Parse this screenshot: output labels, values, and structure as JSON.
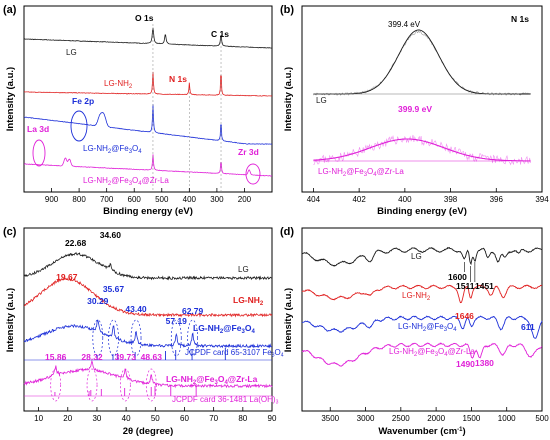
{
  "colors": {
    "LG": "#1a1a1a",
    "LG-NH2": "#e02020",
    "LG-NH2@Fe3O4": "#1c2fd8",
    "LG-NH2@Fe3O4@Zr-La": "#e020d8"
  },
  "chart_data": [
    {
      "panel": "(a)",
      "type": "line",
      "xlabel": "Binding energy (eV)",
      "ylabel": "Intensity (a.u.)",
      "xlim": [
        1000,
        100
      ],
      "xticks": [
        900,
        800,
        700,
        600,
        500,
        400,
        300,
        200
      ],
      "series": [
        {
          "name": "LG",
          "peaks_eV": [
            532,
            487,
            285
          ]
        },
        {
          "name": "LG-NH2",
          "peaks_eV": [
            532,
            400,
            285
          ]
        },
        {
          "name": "LG-NH2@Fe3O4",
          "peaks_eV": [
            711,
            532,
            285
          ]
        },
        {
          "name": "LG-NH2@Fe3O4@Zr-La",
          "peaks_eV": [
            850,
            835,
            532,
            285,
            183
          ]
        }
      ],
      "labels": {
        "LG": "LG",
        "LG-NH2": "LG-NH2",
        "LG-NH2@Fe3O4": "LG-NH2@Fe3O4",
        "LG-NH2@Fe3O4@Zr-La": "LG-NH2@Fe3O4@Zr-La"
      },
      "annotations": {
        "o1s": "O 1s",
        "c1s": "C 1s",
        "n1s": "N 1s",
        "fe2p": "Fe 2p",
        "la3d": "La 3d",
        "zr3d": "Zr 3d"
      }
    },
    {
      "panel": "(b)",
      "type": "line",
      "title": "N 1s",
      "xlabel": "Binding energy (eV)",
      "ylabel": "Intensity (a.u.)",
      "xlim": [
        404.5,
        394
      ],
      "xticks": [
        404,
        402,
        400,
        398,
        396,
        394
      ],
      "series": [
        {
          "name": "LG",
          "peak_eV": 399.4,
          "peak_label": "399.4 eV"
        },
        {
          "name": "LG-NH2@Fe3O4@Zr-La",
          "peak_eV": 399.9,
          "peak_label": "399.9 eV"
        }
      ],
      "labels": {
        "LG": "LG",
        "LG-NH2@Fe3O4@Zr-La": "LG-NH2@Fe3O4@Zr-La"
      }
    },
    {
      "panel": "(c)",
      "type": "line",
      "xlabel": "2θ (degree)",
      "ylabel": "Intensity (a.u.)",
      "xlim": [
        5,
        90
      ],
      "xticks": [
        10,
        20,
        30,
        40,
        50,
        60,
        70,
        80,
        90
      ],
      "series": [
        {
          "name": "LG",
          "peaks_deg": [
            22.68,
            34.6
          ]
        },
        {
          "name": "LG-NH2",
          "peaks_deg": [
            19.67
          ]
        },
        {
          "name": "LG-NH2@Fe3O4",
          "peaks_deg": [
            30.29,
            35.67,
            43.4,
            57.19,
            62.79
          ]
        },
        {
          "name": "LG-NH2@Fe3O4@Zr-La",
          "peaks_deg": [
            15.86,
            28.32,
            39.73,
            48.63
          ]
        }
      ],
      "peak_labels": {
        "LG": [
          "22.68",
          "34.60"
        ],
        "LG-NH2": [
          "19.67"
        ],
        "LG-NH2@Fe3O4": [
          "30.29",
          "35.67",
          "43.40",
          "57.19",
          "62.79"
        ],
        "LG-NH2@Fe3O4@Zr-La": [
          "15.86",
          "28.32",
          "39.73",
          "48.63"
        ]
      },
      "labels": {
        "LG": "LG",
        "LG-NH2": "LG-NH2",
        "LG-NH2@Fe3O4": "LG-NH2@Fe3O4",
        "LG-NH2@Fe3O4@Zr-La": "LG-NH2@Fe3O4@Zr-La"
      },
      "reference_cards": [
        {
          "label": "JCPDF card 65-3107 Fe3O4",
          "positions_deg": [
            18.3,
            30.1,
            35.5,
            37.1,
            43.1,
            53.5,
            57.0,
            62.6,
            74.0
          ]
        },
        {
          "label": "JCPDF card 36-1481 La(OH)3",
          "positions_deg": [
            15.6,
            27.3,
            27.9,
            31.5,
            39.5,
            48.6,
            49.9,
            55.3,
            64.0
          ]
        }
      ]
    },
    {
      "panel": "(d)",
      "type": "line",
      "xlabel": "Wavenumber (cm-1)",
      "ylabel": "Intensity (a.u.)",
      "xlim": [
        3900,
        500
      ],
      "xticks": [
        3500,
        3000,
        2500,
        2000,
        1500,
        1000,
        500
      ],
      "series": [
        {
          "name": "LG",
          "bands_cm": [
            1600,
            1511,
            1451
          ]
        },
        {
          "name": "LG-NH2",
          "bands_cm": [
            1646
          ]
        },
        {
          "name": "LG-NH2@Fe3O4",
          "bands_cm": [
            611
          ]
        },
        {
          "name": "LG-NH2@Fe3O4@Zr-La",
          "bands_cm": [
            1490,
            1380
          ]
        }
      ],
      "band_labels": {
        "b1600": "1600",
        "b1511": "1511",
        "b1451": "1451",
        "b1646": "1646",
        "b611": "611",
        "b1490": "1490",
        "b1380": "1380"
      },
      "labels": {
        "LG": "LG",
        "LG-NH2": "LG-NH2",
        "LG-NH2@Fe3O4": "LG-NH2@Fe3O4",
        "LG-NH2@Fe3O4@Zr-La": "LG-NH2@Fe3O4@Zr-La"
      }
    }
  ]
}
